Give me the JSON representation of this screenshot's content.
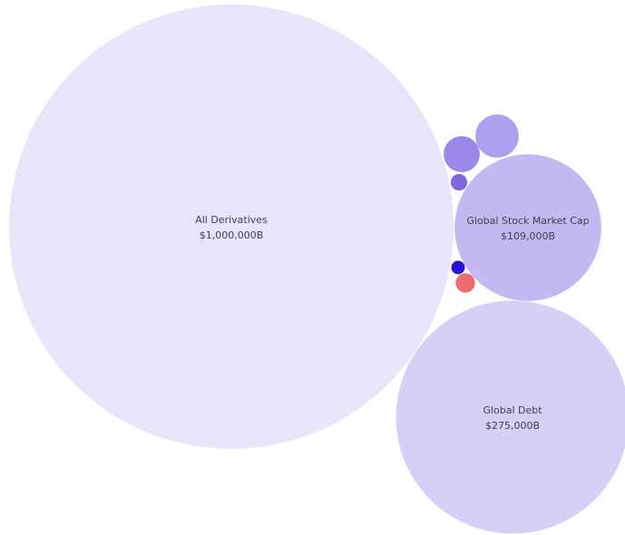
{
  "chart_data": {
    "type": "bubble",
    "title": "",
    "unit": "$B",
    "bubbles": [
      {
        "name": "All Derivatives",
        "value_label": "$1,000,000B",
        "value": 1000000,
        "color": "#e9e4fa",
        "labeled": true
      },
      {
        "name": "Global Debt",
        "value_label": "$275,000B",
        "value": 275000,
        "color": "#d6cff6",
        "labeled": true
      },
      {
        "name": "Global Stock Market Cap",
        "value_label": "$109,000B",
        "value": 109000,
        "color": "#c3b8f2",
        "labeled": true
      },
      {
        "name": "",
        "value_label": "",
        "value": 9500,
        "color": "#ad9eee",
        "labeled": false
      },
      {
        "name": "",
        "value_label": "",
        "value": 6600,
        "color": "#9c87ea",
        "labeled": false
      },
      {
        "name": "",
        "value_label": "",
        "value": 1400,
        "color": "#8067e2",
        "labeled": false
      },
      {
        "name": "",
        "value_label": "",
        "value": 1900,
        "color": "#ec6b6b",
        "labeled": false
      },
      {
        "name": "",
        "value_label": "",
        "value": 930,
        "color": "#2b0fd6",
        "labeled": false
      }
    ]
  }
}
